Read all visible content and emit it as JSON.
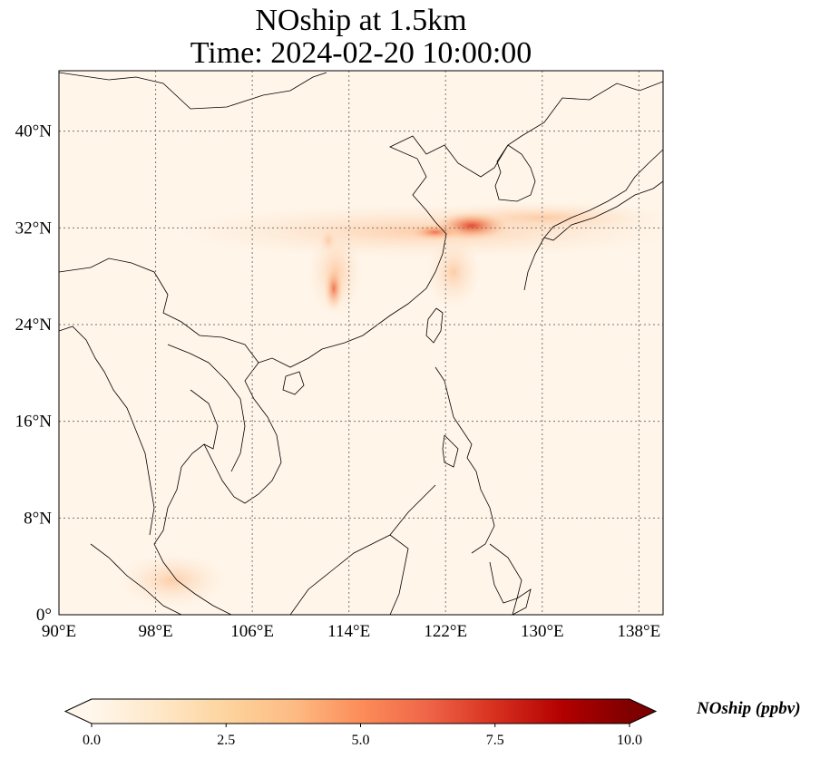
{
  "title_line1": "NOship at 1.5km",
  "title_line2": "Time: 2024-02-20 10:00:00",
  "map": {
    "extent": {
      "lon_min": 90,
      "lon_max": 140,
      "lat_min": 0,
      "lat_max": 45
    },
    "lon_ticks": [
      {
        "value": 90,
        "label": "90°E"
      },
      {
        "value": 98,
        "label": "98°E"
      },
      {
        "value": 106,
        "label": "106°E"
      },
      {
        "value": 114,
        "label": "114°E"
      },
      {
        "value": 122,
        "label": "122°E"
      },
      {
        "value": 130,
        "label": "130°E"
      },
      {
        "value": 138,
        "label": "138°E"
      }
    ],
    "lat_ticks": [
      {
        "value": 0,
        "label": "0°"
      },
      {
        "value": 8,
        "label": "8°N"
      },
      {
        "value": 16,
        "label": "16°N"
      },
      {
        "value": 24,
        "label": "24°N"
      },
      {
        "value": 32,
        "label": "32°N"
      },
      {
        "value": 40,
        "label": "40°N"
      }
    ],
    "gridlines": "dotted",
    "colormap": "OrRd",
    "hotspots": [
      {
        "lon": 125,
        "lat": 32.3,
        "value": 6.0
      },
      {
        "lon": 113.2,
        "lat": 26.8,
        "value": 4.5
      },
      {
        "lon": 122,
        "lat": 31.8,
        "value": 3.0
      }
    ]
  },
  "colorbar": {
    "title": "NOship (ppbv)",
    "min": 0.0,
    "max": 10.0,
    "ticks": [
      {
        "value": 0.0,
        "label": "0.0"
      },
      {
        "value": 2.5,
        "label": "2.5"
      },
      {
        "value": 5.0,
        "label": "5.0"
      },
      {
        "value": 7.5,
        "label": "7.5"
      },
      {
        "value": 10.0,
        "label": "10.0"
      }
    ],
    "extend": "both",
    "colors": [
      "#fff7ec",
      "#fee8c8",
      "#fdd49e",
      "#fdbb84",
      "#fc8d59",
      "#ef6548",
      "#d7301f",
      "#b30000",
      "#7f0000"
    ]
  }
}
